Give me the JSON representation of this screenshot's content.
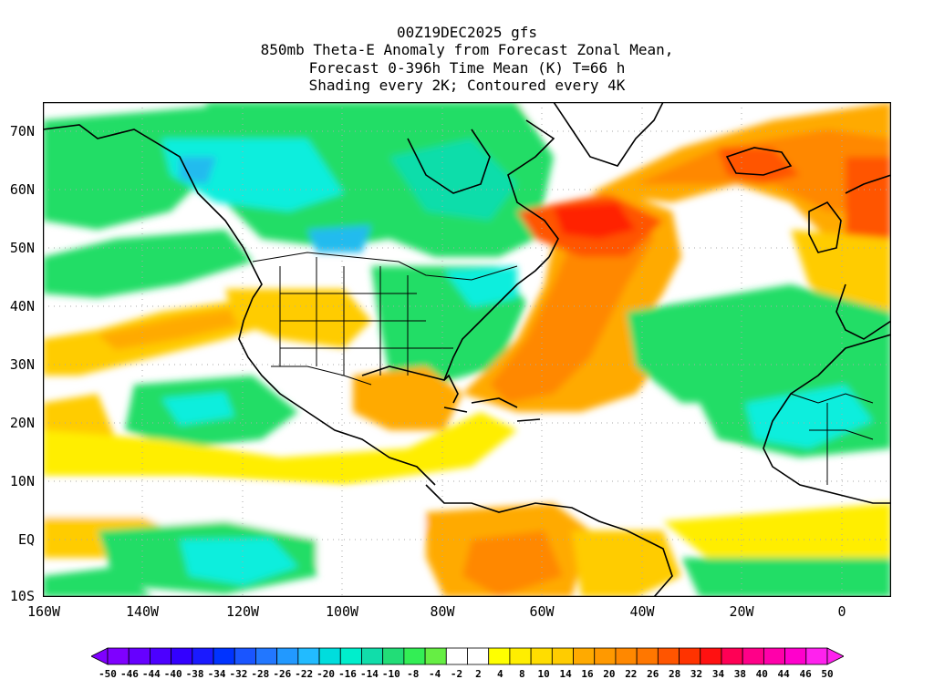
{
  "title": {
    "line1": "00Z19DEC2025 gfs",
    "line2": "850mb Theta-E Anomaly from Forecast Zonal Mean,",
    "line3": "Forecast 0-396h Time Mean (K) T=66 h",
    "line4": "Shading every 2K; Contoured every 4K"
  },
  "map": {
    "region": "North Atlantic, North America and northern South America",
    "lon_range": [
      -160,
      10
    ],
    "lat_range": [
      -10,
      75
    ],
    "lat_labels": [
      "70N",
      "60N",
      "50N",
      "40N",
      "30N",
      "20N",
      "10N",
      "EQ",
      "10S"
    ],
    "lon_labels": [
      "160W",
      "140W",
      "120W",
      "100W",
      "80W",
      "60W",
      "40W",
      "20W",
      "0"
    ],
    "colors": {
      "ocean_neutral": "#ffffff",
      "green_weak": "#66ee44",
      "green": "#22dd66",
      "teal": "#11ddaa",
      "cyan": "#11eedd",
      "sky": "#22bbee",
      "yellow": "#ffee00",
      "gold": "#ffcc00",
      "orange_light": "#ffaa00",
      "orange": "#ff8800",
      "red_orange": "#ff5500",
      "red": "#ff2200"
    }
  },
  "colorbar": {
    "labels": [
      "-50",
      "-46",
      "-44",
      "-40",
      "-38",
      "-34",
      "-32",
      "-28",
      "-26",
      "-22",
      "-20",
      "-16",
      "-14",
      "-10",
      "-8",
      "-4",
      "-2",
      "2",
      "4",
      "8",
      "10",
      "14",
      "16",
      "20",
      "22",
      "26",
      "28",
      "32",
      "34",
      "38",
      "40",
      "44",
      "46",
      "50"
    ],
    "colors": [
      "#7f00ff",
      "#6600ff",
      "#4c00ff",
      "#3300ff",
      "#1a1aff",
      "#0033ff",
      "#1a55ff",
      "#2277ff",
      "#2299ff",
      "#22bbff",
      "#00dddd",
      "#00eecc",
      "#11ddaa",
      "#22dd77",
      "#33ee55",
      "#66ee44",
      "#ffffff",
      "#ffffff",
      "#ffff00",
      "#ffee00",
      "#ffdd00",
      "#ffcc00",
      "#ffaa00",
      "#ff9900",
      "#ff8800",
      "#ff7700",
      "#ff5500",
      "#ff3300",
      "#ff1111",
      "#ff0055",
      "#ff0088",
      "#ff00aa",
      "#ff00cc",
      "#ff22ee"
    ]
  }
}
